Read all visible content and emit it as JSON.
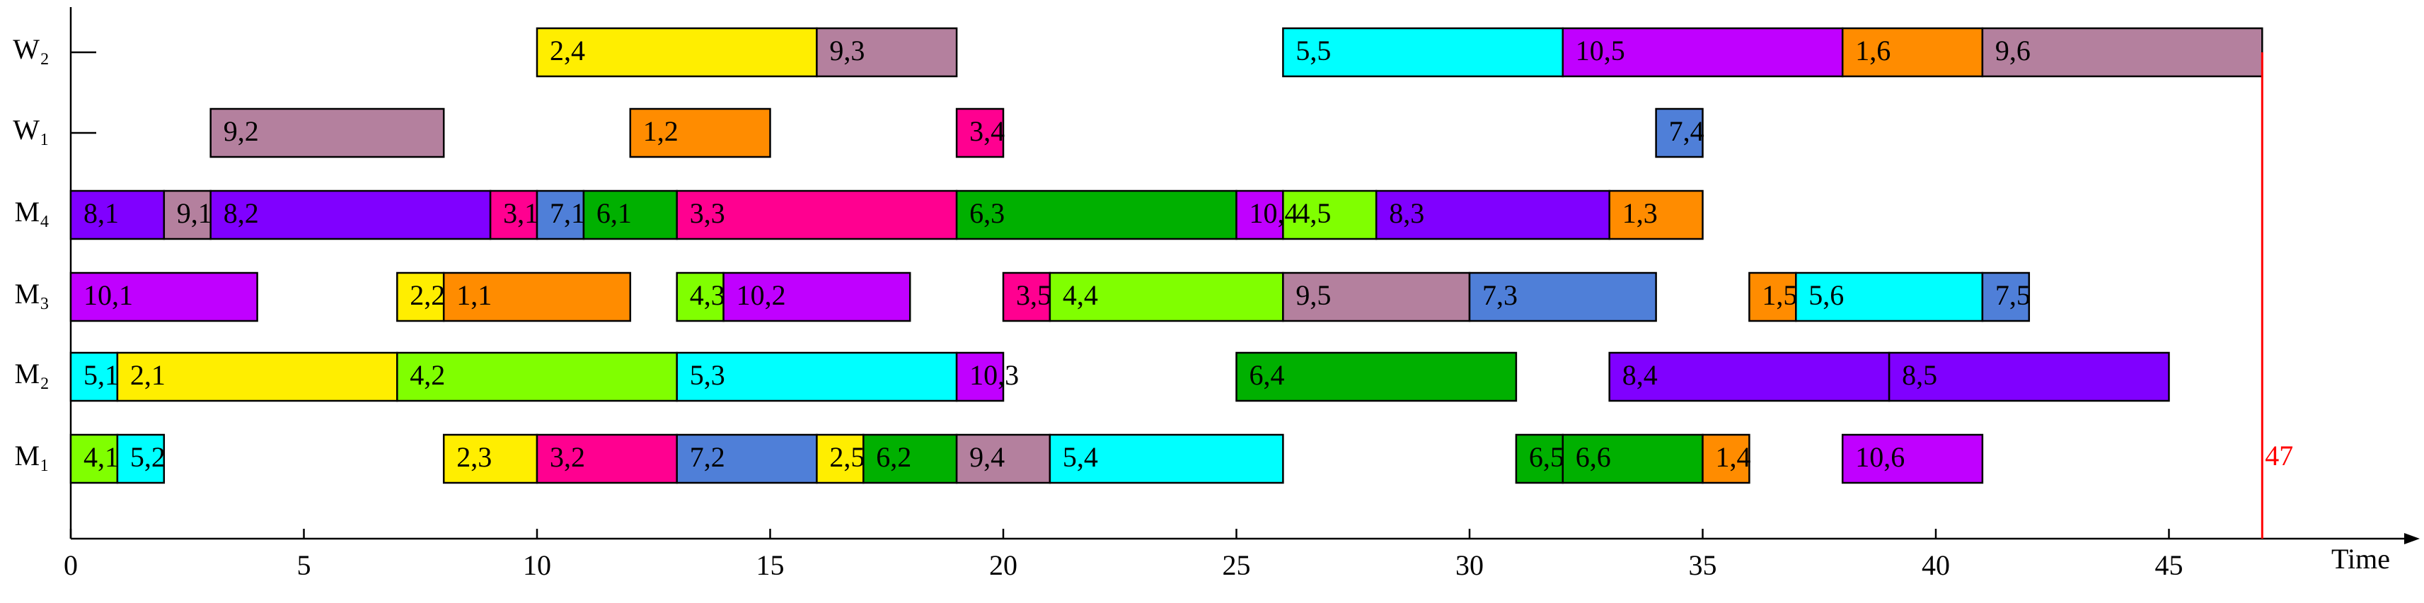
{
  "chart_data": {
    "type": "gantt",
    "x_label": "Time",
    "rows": [
      "W₂",
      "W₁",
      "M₄",
      "M₃",
      "M₂",
      "M₁"
    ],
    "xlim": [
      0,
      50
    ],
    "xticks": [
      0,
      5,
      10,
      15,
      20,
      25,
      30,
      35,
      40,
      45
    ],
    "makespan": 47,
    "makespan_label": "47",
    "makespan_color": "#ff0000",
    "tasks": [
      {
        "row": 0,
        "label": "2,4",
        "start": 10,
        "end": 16,
        "color": "#ffee00"
      },
      {
        "row": 0,
        "label": "9,3",
        "start": 16,
        "end": 19,
        "color": "#b4809e"
      },
      {
        "row": 0,
        "label": "5,5",
        "start": 26,
        "end": 32,
        "color": "#00ffff"
      },
      {
        "row": 0,
        "label": "10,5",
        "start": 32,
        "end": 38,
        "color": "#c000ff"
      },
      {
        "row": 0,
        "label": "1,6",
        "start": 38,
        "end": 41,
        "color": "#ff8c00"
      },
      {
        "row": 0,
        "label": "9,6",
        "start": 41,
        "end": 47,
        "color": "#b4809e"
      },
      {
        "row": 1,
        "label": "9,2",
        "start": 3,
        "end": 8,
        "color": "#b4809e"
      },
      {
        "row": 1,
        "label": "1,2",
        "start": 12,
        "end": 15,
        "color": "#ff8c00"
      },
      {
        "row": 1,
        "label": "3,4",
        "start": 19,
        "end": 20,
        "color": "#ff0090"
      },
      {
        "row": 1,
        "label": "7,4",
        "start": 34,
        "end": 35,
        "color": "#4f7fd8"
      },
      {
        "row": 2,
        "label": "8,1",
        "start": 0,
        "end": 2,
        "color": "#8000ff"
      },
      {
        "row": 2,
        "label": "9,1",
        "start": 2,
        "end": 3,
        "color": "#b4809e"
      },
      {
        "row": 2,
        "label": "8,2",
        "start": 3,
        "end": 9,
        "color": "#8000ff"
      },
      {
        "row": 2,
        "label": "3,1",
        "start": 9,
        "end": 10,
        "color": "#ff0090"
      },
      {
        "row": 2,
        "label": "7,1",
        "start": 10,
        "end": 11,
        "color": "#4f7fd8"
      },
      {
        "row": 2,
        "label": "6,1",
        "start": 11,
        "end": 13,
        "color": "#00b000"
      },
      {
        "row": 2,
        "label": "3,3",
        "start": 13,
        "end": 19,
        "color": "#ff0090"
      },
      {
        "row": 2,
        "label": "6,3",
        "start": 19,
        "end": 25,
        "color": "#00b000"
      },
      {
        "row": 2,
        "label": "10,4",
        "start": 25,
        "end": 26,
        "color": "#c000ff"
      },
      {
        "row": 2,
        "label": "4,5",
        "start": 26,
        "end": 28,
        "color": "#80ff00"
      },
      {
        "row": 2,
        "label": "8,3",
        "start": 28,
        "end": 33,
        "color": "#8000ff"
      },
      {
        "row": 2,
        "label": "1,3",
        "start": 33,
        "end": 35,
        "color": "#ff8c00"
      },
      {
        "row": 3,
        "label": "10,1",
        "start": 0,
        "end": 4,
        "color": "#c000ff"
      },
      {
        "row": 3,
        "label": "2,2",
        "start": 7,
        "end": 8,
        "color": "#ffee00"
      },
      {
        "row": 3,
        "label": "1,1",
        "start": 8,
        "end": 12,
        "color": "#ff8c00"
      },
      {
        "row": 3,
        "label": "4,3",
        "start": 13,
        "end": 14,
        "color": "#80ff00"
      },
      {
        "row": 3,
        "label": "10,2",
        "start": 14,
        "end": 18,
        "color": "#c000ff"
      },
      {
        "row": 3,
        "label": "3,5",
        "start": 20,
        "end": 21,
        "color": "#ff0090"
      },
      {
        "row": 3,
        "label": "4,4",
        "start": 21,
        "end": 26,
        "color": "#80ff00"
      },
      {
        "row": 3,
        "label": "9,5",
        "start": 26,
        "end": 30,
        "color": "#b4809e"
      },
      {
        "row": 3,
        "label": "7,3",
        "start": 30,
        "end": 34,
        "color": "#4f7fd8"
      },
      {
        "row": 3,
        "label": "1,5",
        "start": 36,
        "end": 37,
        "color": "#ff8c00"
      },
      {
        "row": 3,
        "label": "5,6",
        "start": 37,
        "end": 41,
        "color": "#00ffff"
      },
      {
        "row": 3,
        "label": "7,5",
        "start": 41,
        "end": 42,
        "color": "#4f7fd8"
      },
      {
        "row": 4,
        "label": "5,1",
        "start": 0,
        "end": 1,
        "color": "#00ffff"
      },
      {
        "row": 4,
        "label": "2,1",
        "start": 1,
        "end": 7,
        "color": "#ffee00"
      },
      {
        "row": 4,
        "label": "4,2",
        "start": 7,
        "end": 13,
        "color": "#80ff00"
      },
      {
        "row": 4,
        "label": "5,3",
        "start": 13,
        "end": 19,
        "color": "#00ffff"
      },
      {
        "row": 4,
        "label": "10,3",
        "start": 19,
        "end": 20,
        "color": "#c000ff"
      },
      {
        "row": 4,
        "label": "6,4",
        "start": 25,
        "end": 31,
        "color": "#00b000"
      },
      {
        "row": 4,
        "label": "8,4",
        "start": 33,
        "end": 39,
        "color": "#8000ff"
      },
      {
        "row": 4,
        "label": "8,5",
        "start": 39,
        "end": 45,
        "color": "#8000ff"
      },
      {
        "row": 5,
        "label": "4,1",
        "start": 0,
        "end": 1,
        "color": "#80ff00"
      },
      {
        "row": 5,
        "label": "5,2",
        "start": 1,
        "end": 2,
        "color": "#00ffff"
      },
      {
        "row": 5,
        "label": "2,3",
        "start": 8,
        "end": 10,
        "color": "#ffee00"
      },
      {
        "row": 5,
        "label": "3,2",
        "start": 10,
        "end": 13,
        "color": "#ff0090"
      },
      {
        "row": 5,
        "label": "7,2",
        "start": 13,
        "end": 16,
        "color": "#4f7fd8"
      },
      {
        "row": 5,
        "label": "2,5",
        "start": 16,
        "end": 17,
        "color": "#ffee00"
      },
      {
        "row": 5,
        "label": "6,2",
        "start": 17,
        "end": 19,
        "color": "#00b000"
      },
      {
        "row": 5,
        "label": "9,4",
        "start": 19,
        "end": 21,
        "color": "#b4809e"
      },
      {
        "row": 5,
        "label": "5,4",
        "start": 21,
        "end": 26,
        "color": "#00ffff"
      },
      {
        "row": 5,
        "label": "6,5",
        "start": 31,
        "end": 32,
        "color": "#00b000"
      },
      {
        "row": 5,
        "label": "6,6",
        "start": 32,
        "end": 35,
        "color": "#00b000"
      },
      {
        "row": 5,
        "label": "1,4",
        "start": 35,
        "end": 36,
        "color": "#ff8c00"
      },
      {
        "row": 5,
        "label": "10,6",
        "start": 38,
        "end": 41,
        "color": "#c000ff"
      }
    ]
  }
}
